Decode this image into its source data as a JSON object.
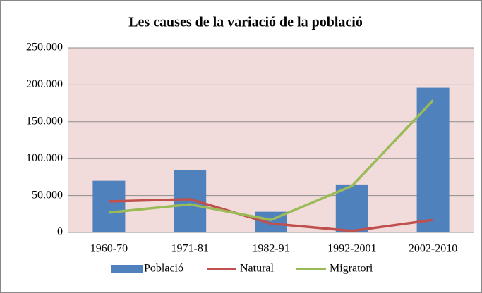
{
  "chart_data": {
    "type": "bar",
    "title": "Les causes de la variació de la població",
    "categories": [
      "1960-70",
      "1971-81",
      "1982-91",
      "1992-2001",
      "2002-2010"
    ],
    "series": [
      {
        "name": "Població",
        "type": "bar",
        "color": "#4f81bd",
        "values": [
          70000,
          84000,
          28000,
          65000,
          196000
        ]
      },
      {
        "name": "Natural",
        "type": "line",
        "color": "#c0504d",
        "values": [
          42000,
          45000,
          12000,
          2000,
          17000
        ]
      },
      {
        "name": "Migratori",
        "type": "line",
        "color": "#9bbb59",
        "values": [
          27000,
          38000,
          17000,
          63000,
          179000
        ]
      }
    ],
    "ylim": [
      0,
      250000
    ],
    "yticks": [
      0,
      {
        "value": 50000,
        "label": "50.000"
      },
      {
        "value": 100000,
        "label": "100.000"
      },
      {
        "value": 150000,
        "label": "150.000"
      },
      {
        "value": 200000,
        "label": "200.000"
      },
      {
        "value": 250000,
        "label": "250.000"
      }
    ],
    "grid": true,
    "legend": "bottom",
    "plot_background": "#f2dcdb"
  }
}
